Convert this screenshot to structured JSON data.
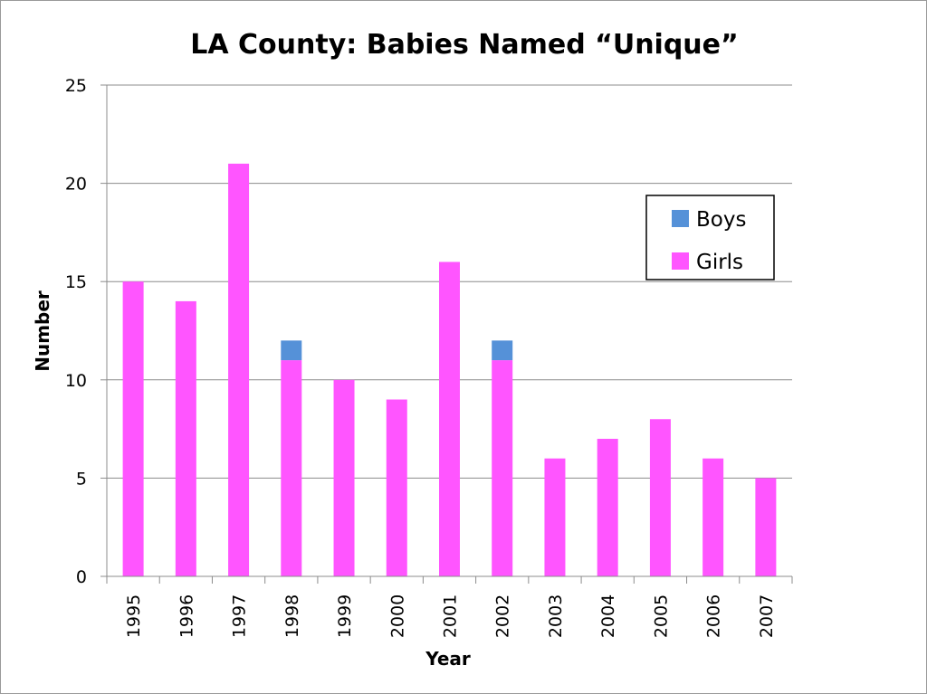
{
  "chart_data": {
    "type": "bar",
    "stacked": true,
    "title": "LA County: Babies Named “Unique”",
    "xlabel": "Year",
    "ylabel": "Number",
    "categories": [
      "1995",
      "1996",
      "1997",
      "1998",
      "1999",
      "2000",
      "2001",
      "2002",
      "2003",
      "2004",
      "2005",
      "2006",
      "2007"
    ],
    "series": [
      {
        "name": "Girls",
        "color": "#ff55ff",
        "values": [
          15,
          14,
          21,
          11,
          10,
          9,
          16,
          11,
          6,
          7,
          8,
          6,
          5
        ]
      },
      {
        "name": "Boys",
        "color": "#5591d8",
        "values": [
          0,
          0,
          0,
          1,
          0,
          0,
          0,
          1,
          0,
          0,
          0,
          0,
          0
        ]
      }
    ],
    "legend_order": [
      "Boys",
      "Girls"
    ],
    "ylim": [
      0,
      25
    ],
    "yticks": [
      "0",
      "5",
      "10",
      "15",
      "20",
      "25"
    ],
    "grid": true,
    "legend_position": "right"
  }
}
